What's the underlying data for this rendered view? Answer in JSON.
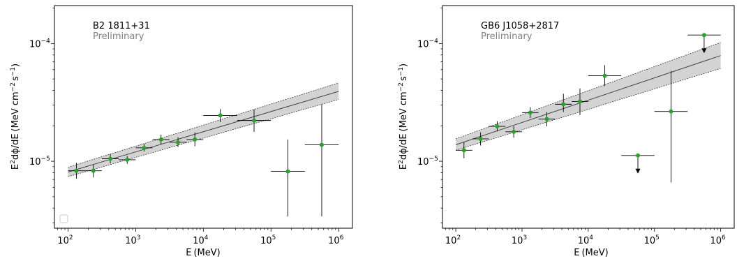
{
  "chart_data": [
    {
      "type": "scatter",
      "title": "",
      "annotation": "B2 1811+31",
      "annotation_sub": "Preliminary",
      "xlabel_base": "E",
      "xlabel_unit": "(MeV)",
      "ylabel_main": "dϕ/dE",
      "ylabel_unit": "(MeV cm",
      "ylabel_tail": "s",
      "xscale": "log",
      "yscale": "log",
      "xlim": [
        63,
        1600000
      ],
      "ylim": [
        2.7e-06,
        0.00021
      ],
      "xticks": [
        {
          "base": "10",
          "exp": "2",
          "value": 100
        },
        {
          "base": "10",
          "exp": "3",
          "value": 1000
        },
        {
          "base": "10",
          "exp": "4",
          "value": 10000
        },
        {
          "base": "10",
          "exp": "5",
          "value": 100000
        },
        {
          "base": "10",
          "exp": "6",
          "value": 1000000
        }
      ],
      "yticks": [
        {
          "base": "10",
          "exp": "−5",
          "value": 1e-05
        },
        {
          "base": "10",
          "exp": "−4",
          "value": 0.0001
        }
      ],
      "marker_color": "#2ca02c",
      "band_color": "#d3d3d3",
      "legend": "bottom-left (empty)",
      "grid": false,
      "fit_line": {
        "x": [
          100,
          1000000
        ],
        "y": [
          8.1e-06,
          3.92e-05
        ],
        "band_lo": [
          7.4e-06,
          3.35e-05
        ],
        "band_hi": [
          8.9e-06,
          4.62e-05
        ]
      },
      "points": [
        {
          "x": 133,
          "y": 8.3e-06,
          "xlo": 100,
          "xhi": 178,
          "ylo": 7.1e-06,
          "yhi": 9.7e-06,
          "ul": false
        },
        {
          "x": 237,
          "y": 8.3e-06,
          "xlo": 178,
          "xhi": 316,
          "ylo": 7.3e-06,
          "yhi": 9.4e-06,
          "ul": false
        },
        {
          "x": 422,
          "y": 1.05e-05,
          "xlo": 316,
          "xhi": 562,
          "ylo": 9.6e-06,
          "yhi": 1.15e-05,
          "ul": false
        },
        {
          "x": 750,
          "y": 1.03e-05,
          "xlo": 562,
          "xhi": 1000,
          "ylo": 9.5e-06,
          "yhi": 1.11e-05,
          "ul": false
        },
        {
          "x": 1334,
          "y": 1.3e-05,
          "xlo": 1000,
          "xhi": 1778,
          "ylo": 1.21e-05,
          "yhi": 1.4e-05,
          "ul": false
        },
        {
          "x": 2371,
          "y": 1.53e-05,
          "xlo": 1778,
          "xhi": 3162,
          "ylo": 1.39e-05,
          "yhi": 1.68e-05,
          "ul": false
        },
        {
          "x": 4217,
          "y": 1.45e-05,
          "xlo": 3162,
          "xhi": 5623,
          "ylo": 1.32e-05,
          "yhi": 1.6e-05,
          "ul": false
        },
        {
          "x": 7499,
          "y": 1.53e-05,
          "xlo": 5623,
          "xhi": 10000,
          "ylo": 1.34e-05,
          "yhi": 1.76e-05,
          "ul": false
        },
        {
          "x": 17783,
          "y": 2.45e-05,
          "xlo": 10000,
          "xhi": 31623,
          "ylo": 2.15e-05,
          "yhi": 2.77e-05,
          "ul": false
        },
        {
          "x": 56234,
          "y": 2.22e-05,
          "xlo": 31623,
          "xhi": 100000,
          "ylo": 1.78e-05,
          "yhi": 2.75e-05,
          "ul": false
        },
        {
          "x": 177828,
          "y": 8.2e-06,
          "xlo": 100000,
          "xhi": 316228,
          "ylo": 3.4e-06,
          "yhi": 1.53e-05,
          "ul": false
        },
        {
          "x": 562341,
          "y": 1.38e-05,
          "xlo": 316228,
          "xhi": 1000000,
          "ylo": 3.4e-06,
          "yhi": 3.05e-05,
          "ul": false
        }
      ]
    },
    {
      "type": "scatter",
      "title": "",
      "annotation": "GB6 J1058+2817",
      "annotation_sub": "Preliminary",
      "xlabel_base": "E",
      "xlabel_unit": "(MeV)",
      "ylabel_main": "dϕ/dE",
      "ylabel_unit": "(MeV cm",
      "ylabel_tail": "s",
      "xscale": "log",
      "yscale": "log",
      "xlim": [
        63,
        1600000
      ],
      "ylim": [
        2.7e-06,
        0.00021
      ],
      "xticks": [
        {
          "base": "10",
          "exp": "2",
          "value": 100
        },
        {
          "base": "10",
          "exp": "3",
          "value": 1000
        },
        {
          "base": "10",
          "exp": "4",
          "value": 10000
        },
        {
          "base": "10",
          "exp": "5",
          "value": 100000
        },
        {
          "base": "10",
          "exp": "6",
          "value": 1000000
        }
      ],
      "yticks": [
        {
          "base": "10",
          "exp": "−5",
          "value": 1e-05
        },
        {
          "base": "10",
          "exp": "−4",
          "value": 0.0001
        }
      ],
      "marker_color": "#2ca02c",
      "band_color": "#d3d3d3",
      "legend": "none",
      "grid": false,
      "fit_line": {
        "x": [
          100,
          1000000
        ],
        "y": [
          1.38e-05,
          7.9e-05
        ],
        "band_lo": [
          1.24e-05,
          6.15e-05
        ],
        "band_hi": [
          1.55e-05,
          0.000102
        ]
      },
      "points": [
        {
          "x": 133,
          "y": 1.24e-05,
          "xlo": 100,
          "xhi": 178,
          "ylo": 1.06e-05,
          "yhi": 1.45e-05,
          "ul": false
        },
        {
          "x": 237,
          "y": 1.55e-05,
          "xlo": 178,
          "xhi": 316,
          "ylo": 1.36e-05,
          "yhi": 1.76e-05,
          "ul": false
        },
        {
          "x": 422,
          "y": 1.98e-05,
          "xlo": 316,
          "xhi": 562,
          "ylo": 1.79e-05,
          "yhi": 2.19e-05,
          "ul": false
        },
        {
          "x": 750,
          "y": 1.78e-05,
          "xlo": 562,
          "xhi": 1000,
          "ylo": 1.59e-05,
          "yhi": 1.98e-05,
          "ul": false
        },
        {
          "x": 1334,
          "y": 2.59e-05,
          "xlo": 1000,
          "xhi": 1778,
          "ylo": 2.33e-05,
          "yhi": 2.88e-05,
          "ul": false
        },
        {
          "x": 2371,
          "y": 2.28e-05,
          "xlo": 1778,
          "xhi": 3162,
          "ylo": 1.98e-05,
          "yhi": 2.62e-05,
          "ul": false
        },
        {
          "x": 4217,
          "y": 3.05e-05,
          "xlo": 3162,
          "xhi": 5623,
          "ylo": 2.62e-05,
          "yhi": 3.75e-05,
          "ul": false
        },
        {
          "x": 7499,
          "y": 3.22e-05,
          "xlo": 5623,
          "xhi": 10000,
          "ylo": 2.47e-05,
          "yhi": 4.15e-05,
          "ul": false
        },
        {
          "x": 17783,
          "y": 5.32e-05,
          "xlo": 10000,
          "xhi": 31623,
          "ylo": 4.35e-05,
          "yhi": 6.55e-05,
          "ul": false
        },
        {
          "x": 56234,
          "y": 1.12e-05,
          "xlo": 31623,
          "xhi": 100000,
          "ylo": 1.12e-05,
          "yhi": 1.12e-05,
          "ul": true
        },
        {
          "x": 177828,
          "y": 2.65e-05,
          "xlo": 100000,
          "xhi": 316228,
          "ylo": 6.6e-06,
          "yhi": 5.85e-05,
          "ul": false
        },
        {
          "x": 562341,
          "y": 0.000118,
          "xlo": 316228,
          "xhi": 1000000,
          "ylo": 0.000118,
          "yhi": 0.000118,
          "ul": true
        }
      ]
    }
  ]
}
